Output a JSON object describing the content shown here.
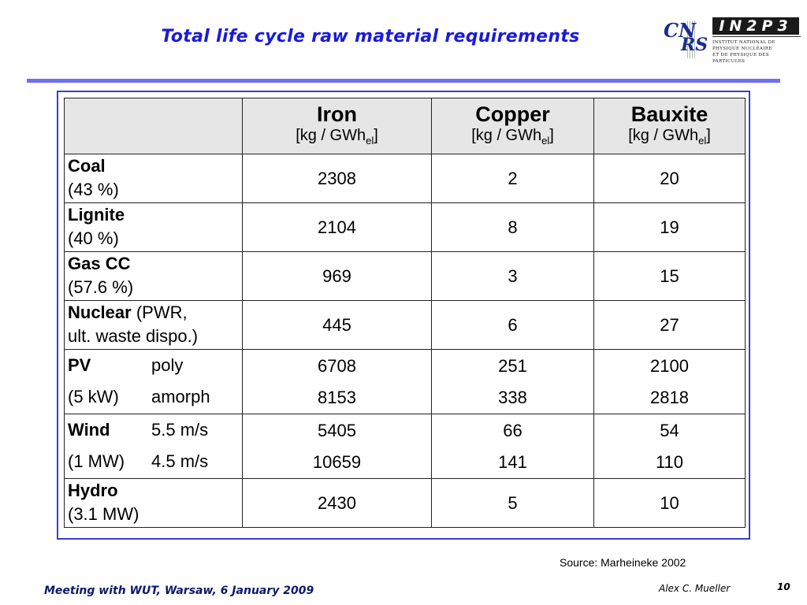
{
  "slide": {
    "title": "Total life cycle raw material requirements",
    "source": "Source: Marheineke 2002",
    "footer": "Meeting with WUT, Warsaw, 6 January 2009",
    "author": "Alex C. Mueller",
    "page": "10"
  },
  "logo": {
    "cnrs_a": "CN",
    "cnrs_b": "RS",
    "in2p3": "IN2P3",
    "in2p3_sub1": "Institut National de Physique Nucléaire",
    "in2p3_sub2": "et de Physique des Particules"
  },
  "table": {
    "columns": [
      {
        "name": "Iron",
        "unit_pre": "[kg / GWh",
        "unit_sub": "el",
        "unit_post": "]"
      },
      {
        "name": "Copper",
        "unit_pre": "[kg / GWh",
        "unit_sub": "el",
        "unit_post": "]"
      },
      {
        "name": "Bauxite",
        "unit_pre": "[kg / GWh",
        "unit_sub": "el",
        "unit_post": "]"
      }
    ],
    "rows": [
      {
        "name": "Coal",
        "detail": "(43 %)",
        "values": [
          "2308",
          "2",
          "20"
        ]
      },
      {
        "name": "Lignite",
        "detail": "(40 %)",
        "values": [
          "2104",
          "8",
          "19"
        ]
      },
      {
        "name": "Gas CC",
        "detail": "(57.6 %)",
        "values": [
          "969",
          "3",
          "15"
        ]
      },
      {
        "name": "Nuclear",
        "name_suffix": " (PWR,",
        "detail": "ult. waste dispo.)",
        "values": [
          "445",
          "6",
          "27"
        ]
      },
      {
        "name": "PV",
        "sub": "(5 kW)",
        "variants": [
          {
            "label": "poly",
            "values": [
              "6708",
              "251",
              "2100"
            ]
          },
          {
            "label": "amorph",
            "values": [
              "8153",
              "338",
              "2818"
            ]
          }
        ]
      },
      {
        "name": "Wind",
        "sub": "(1 MW)",
        "variants": [
          {
            "label": "5.5 m/s",
            "values": [
              "5405",
              "66",
              "54"
            ]
          },
          {
            "label": "4.5 m/s",
            "values": [
              "10659",
              "141",
              "110"
            ]
          }
        ]
      },
      {
        "name": "Hydro",
        "detail": "(3.1 MW)",
        "values": [
          "2430",
          "5",
          "10"
        ]
      }
    ]
  }
}
